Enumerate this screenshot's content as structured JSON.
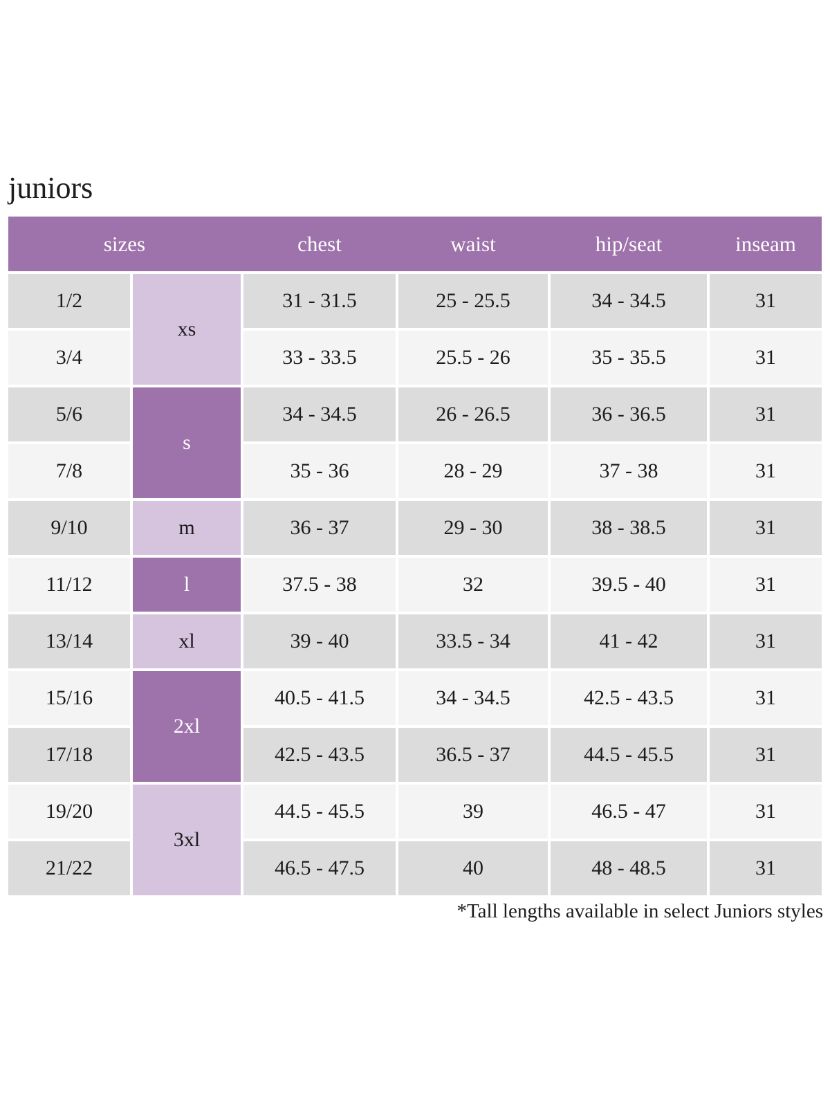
{
  "page": {
    "title": "juniors",
    "footnote": "*Tall lengths available in select Juniors styles"
  },
  "colors": {
    "header_purple": "#9e72aa",
    "purple_dark": "#9e72aa",
    "purple_light": "#d6c3de",
    "row_gray_dark": "#dcdcdc",
    "row_gray_light": "#f4f4f4",
    "header_text": "#ffffff",
    "body_text": "#1c1c1c"
  },
  "chart_data": {
    "type": "table",
    "title": "juniors",
    "headers": [
      "sizes",
      "chest",
      "waist",
      "hip/seat",
      "inseam"
    ],
    "size_groups": [
      {
        "label": "xs",
        "row_span": 2,
        "shade": "light"
      },
      {
        "label": "s",
        "row_span": 2,
        "shade": "dark"
      },
      {
        "label": "m",
        "row_span": 1,
        "shade": "light"
      },
      {
        "label": "l",
        "row_span": 1,
        "shade": "dark"
      },
      {
        "label": "xl",
        "row_span": 1,
        "shade": "light"
      },
      {
        "label": "2xl",
        "row_span": 2,
        "shade": "dark"
      },
      {
        "label": "3xl",
        "row_span": 2,
        "shade": "light"
      }
    ],
    "rows": [
      {
        "size": "1/2",
        "chest": "31 - 31.5",
        "waist": "25 - 25.5",
        "hip_seat": "34 - 34.5",
        "inseam": "31"
      },
      {
        "size": "3/4",
        "chest": "33 - 33.5",
        "waist": "25.5 - 26",
        "hip_seat": "35 - 35.5",
        "inseam": "31"
      },
      {
        "size": "5/6",
        "chest": "34 - 34.5",
        "waist": "26 - 26.5",
        "hip_seat": "36 - 36.5",
        "inseam": "31"
      },
      {
        "size": "7/8",
        "chest": "35 - 36",
        "waist": "28 - 29",
        "hip_seat": "37 - 38",
        "inseam": "31"
      },
      {
        "size": "9/10",
        "chest": "36 - 37",
        "waist": "29 - 30",
        "hip_seat": "38 - 38.5",
        "inseam": "31"
      },
      {
        "size": "11/12",
        "chest": "37.5 - 38",
        "waist": "32",
        "hip_seat": "39.5 - 40",
        "inseam": "31"
      },
      {
        "size": "13/14",
        "chest": "39 - 40",
        "waist": "33.5 - 34",
        "hip_seat": "41 - 42",
        "inseam": "31"
      },
      {
        "size": "15/16",
        "chest": "40.5 - 41.5",
        "waist": "34 - 34.5",
        "hip_seat": "42.5 - 43.5",
        "inseam": "31"
      },
      {
        "size": "17/18",
        "chest": "42.5 - 43.5",
        "waist": "36.5 - 37",
        "hip_seat": "44.5 - 45.5",
        "inseam": "31"
      },
      {
        "size": "19/20",
        "chest": "44.5 - 45.5",
        "waist": "39",
        "hip_seat": "46.5 - 47",
        "inseam": "31"
      },
      {
        "size": "21/22",
        "chest": "46.5 - 47.5",
        "waist": "40",
        "hip_seat": "48 - 48.5",
        "inseam": "31"
      }
    ],
    "footnote": "*Tall lengths available in select Juniors styles"
  }
}
